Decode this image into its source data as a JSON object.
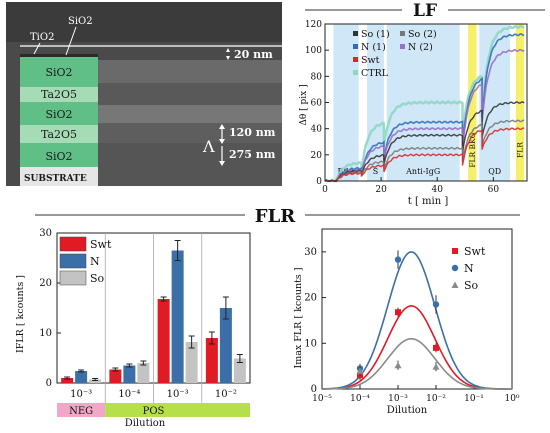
{
  "sem": {
    "layers": [
      "SiO2",
      "Ta2O5",
      "SiO2",
      "Ta2O5",
      "SiO2"
    ],
    "top_labels": [
      "TiO2",
      "SiO2"
    ],
    "scale_labels": [
      "20 nm",
      "120 nm",
      "275 nm"
    ],
    "lambda": "Λ",
    "substrate": "SUBSTRATE",
    "colors": {
      "sio2": "#5fbf86",
      "ta2o5": "#a6dcb5"
    }
  },
  "lf": {
    "title": "LF",
    "ylabel": "Δθ [ pix ]",
    "xlabel": "t [ min ]",
    "yticks": [
      "0",
      "20",
      "40",
      "60",
      "80",
      "100",
      "120"
    ],
    "xticks": [
      "0",
      "20",
      "40",
      "60"
    ],
    "legend": [
      {
        "label": "So (1)",
        "color": "#333333"
      },
      {
        "label": "So (2)",
        "color": "#777777"
      },
      {
        "label": "N (1)",
        "color": "#2f6fba"
      },
      {
        "label": "N (2)",
        "color": "#9b6ec8"
      },
      {
        "label": "Swt",
        "color": "#d42a2a"
      },
      {
        "label": "CTRL",
        "color": "#8fd6c4"
      }
    ],
    "phases": [
      {
        "label": "BSA",
        "color": "#cfe7f6"
      },
      {
        "label": "S",
        "color": "#cfe7f6"
      },
      {
        "label": "Anti-IgG",
        "color": "#cfe7f6"
      },
      {
        "label": "FLR BKG",
        "color": "#f4f06a"
      },
      {
        "label": "QD",
        "color": "#cfe7f6"
      },
      {
        "label": "FLR",
        "color": "#f4f06a"
      }
    ]
  },
  "flr_title": "FLR",
  "chart_data": [
    {
      "type": "bar",
      "ylabel": "IFLR [ kcounts ]",
      "xlabel": "Dilution",
      "categories": [
        "10^-3",
        "10^-4",
        "10^-3",
        "10^-2"
      ],
      "category_labels": [
        "10⁻³",
        "10⁻⁴",
        "10⁻³",
        "10⁻²"
      ],
      "groups": [
        {
          "label": "NEG",
          "color": "#f4a6c8"
        },
        {
          "label": "POS",
          "color": "#b6e04a"
        }
      ],
      "ylim": [
        0,
        30
      ],
      "yticks": [
        "0",
        "10",
        "20",
        "30"
      ],
      "series": [
        {
          "name": "Swt",
          "color": "#e01b24",
          "values": [
            1.0,
            2.7,
            16.8,
            9.0
          ],
          "errors": [
            0.2,
            0.3,
            0.4,
            1.2
          ]
        },
        {
          "name": "N",
          "color": "#3b6fa8",
          "values": [
            2.4,
            3.5,
            26.5,
            15.0
          ],
          "errors": [
            0.2,
            0.3,
            2.0,
            2.2
          ]
        },
        {
          "name": "So",
          "color": "#c3c3c3",
          "values": [
            0.7,
            4.0,
            8.2,
            4.9
          ],
          "errors": [
            0.2,
            0.4,
            1.2,
            0.8
          ]
        }
      ],
      "legend_labels": [
        "Swt",
        "N",
        "So"
      ]
    },
    {
      "type": "scatter",
      "xscale": "log",
      "ylabel": "Imax FLR [ kcounts ]",
      "xlabel": "Dilution",
      "xlim": [
        -5,
        0
      ],
      "ylim": [
        0,
        35
      ],
      "xtick_labels": [
        "10⁻⁵",
        "10⁻⁴",
        "10⁻³",
        "10⁻²",
        "10⁻¹",
        "10⁰"
      ],
      "yticks": [
        "0",
        "10",
        "20",
        "30"
      ],
      "series": [
        {
          "name": "Swt",
          "color": "#e01b24",
          "marker": "square",
          "x": [
            0.0001,
            0.001,
            0.01
          ],
          "y": [
            3.0,
            16.8,
            9.0
          ],
          "curve_peak": 18.2
        },
        {
          "name": "N",
          "color": "#3b6fa8",
          "marker": "circle",
          "x": [
            0.0001,
            0.001,
            0.01
          ],
          "y": [
            4.5,
            28.3,
            18.5
          ],
          "curve_peak": 30.0
        },
        {
          "name": "So",
          "color": "#8a8a8a",
          "marker": "triangle",
          "x": [
            0.0001,
            0.001,
            0.01
          ],
          "y": [
            3.9,
            5.2,
            4.9
          ],
          "curve_peak": 11.0
        }
      ],
      "legend_labels": [
        "Swt",
        "N",
        "So"
      ]
    }
  ]
}
